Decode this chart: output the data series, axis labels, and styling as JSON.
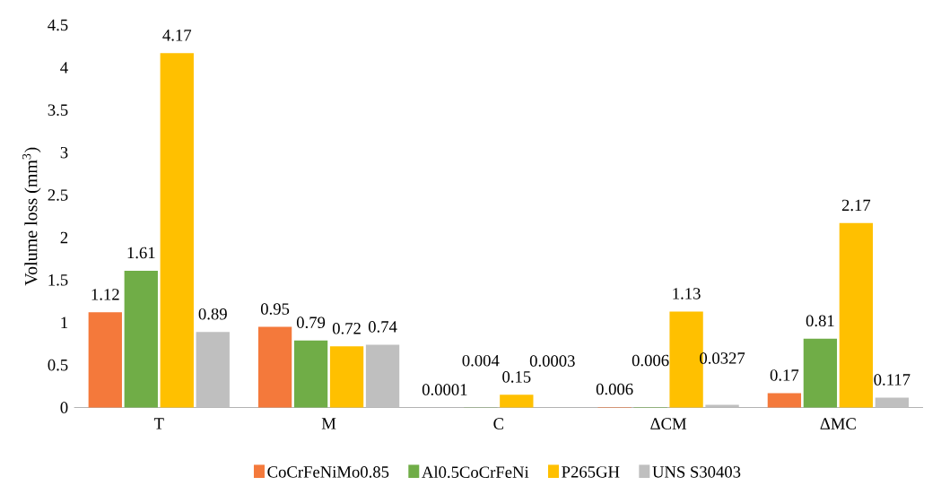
{
  "chart_data": {
    "type": "bar",
    "ylabel": "Volume loss (mm$^{3}$)",
    "categories": [
      "T",
      "M",
      "C",
      "ΔCM",
      "ΔMC"
    ],
    "series": [
      {
        "name": "CoCrFeNiMo0.85",
        "color": "#f4793b",
        "values": [
          1.12,
          0.95,
          0.0001,
          0.006,
          0.17
        ],
        "value_labels": [
          "1.12",
          "0.95",
          "0.0001",
          "0.006",
          "0.17"
        ]
      },
      {
        "name": "Al0.5CoCrFeNi",
        "color": "#70ad47",
        "values": [
          1.61,
          0.79,
          0.004,
          0.006,
          0.81
        ],
        "value_labels": [
          "1.61",
          "0.79",
          "0.004",
          "0.006",
          "0.81"
        ]
      },
      {
        "name": "P265GH",
        "color": "#ffc000",
        "values": [
          4.17,
          0.72,
          0.15,
          1.13,
          2.17
        ],
        "value_labels": [
          "4.17",
          "0.72",
          "0.15",
          "1.13",
          "2.17"
        ]
      },
      {
        "name": "UNS S30403",
        "color": "#bfbfbf",
        "values": [
          0.89,
          0.74,
          0.0003,
          0.0327,
          0.117
        ],
        "value_labels": [
          "0.89",
          "0.74",
          "0.0003",
          "0.0327",
          "0.117"
        ]
      }
    ],
    "ylim": [
      0,
      4.5
    ],
    "yticks": [
      0,
      0.5,
      1,
      1.5,
      2,
      2.5,
      3,
      3.5,
      4,
      4.5
    ],
    "legend": "bottom",
    "grid": false
  }
}
